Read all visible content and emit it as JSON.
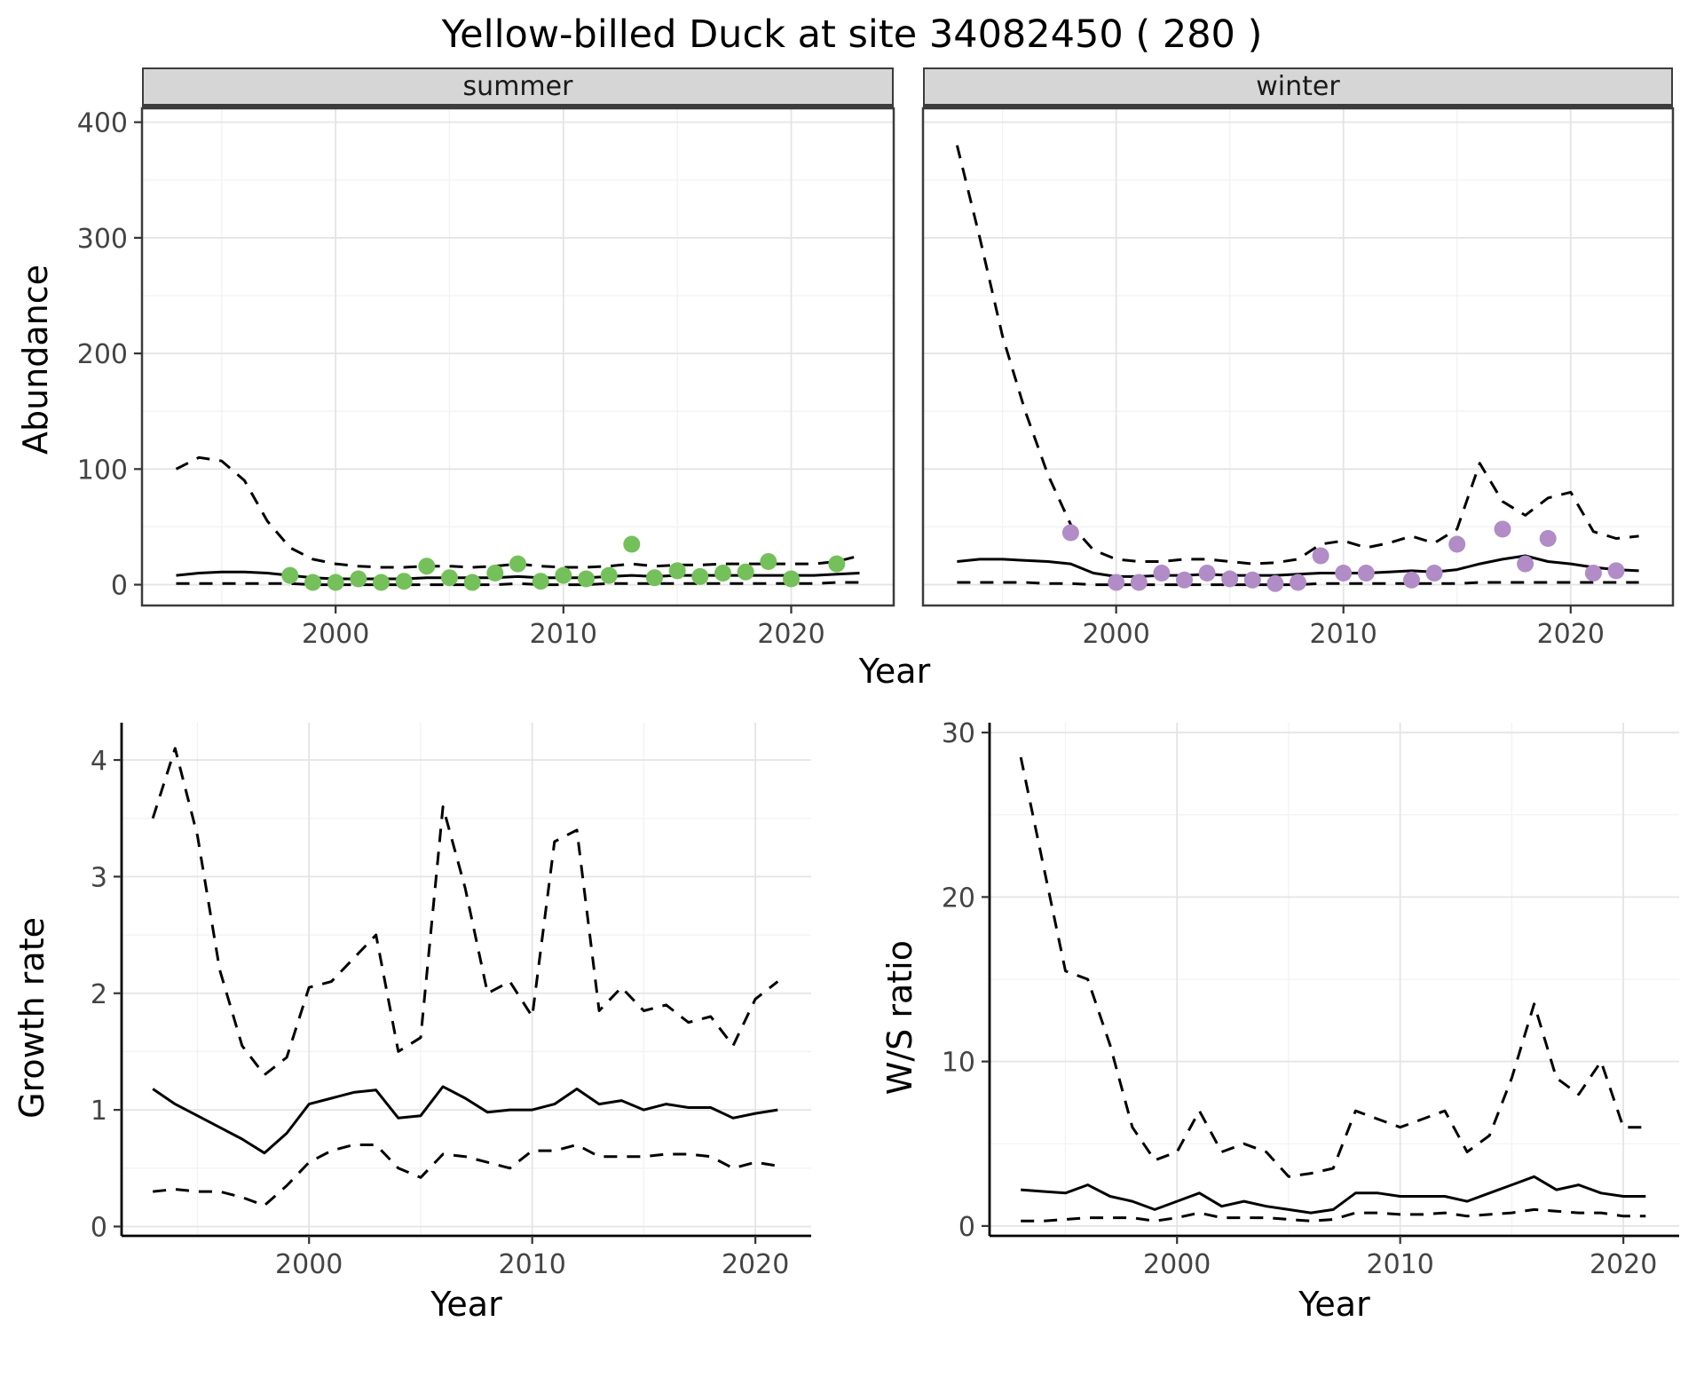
{
  "title": "Yellow-billed Duck at site 34082450 ( 280 )",
  "theme": {
    "summer_point": "#74c05a",
    "winter_point": "#b18cc6",
    "line": "#000000",
    "grid_major": "#e4e4e4",
    "grid_minor": "#f2f2f2",
    "strip_bg": "#d6d6d6",
    "frame": "#3c3c3c",
    "tick_text": "#444444"
  },
  "chart_data": [
    {
      "id": "abundance-summer",
      "type": "line",
      "facet_label": "summer",
      "xlabel": "Year",
      "ylabel": "Abundance",
      "xlim": [
        1991.5,
        2024.5
      ],
      "ylim": [
        -18,
        412
      ],
      "xticks": [
        2000,
        2010,
        2020
      ],
      "yticks": [
        0,
        100,
        200,
        300,
        400
      ],
      "series": [
        {
          "name": "upper-95ci",
          "type": "line",
          "dash": true,
          "x": [
            1993,
            1994,
            1995,
            1996,
            1997,
            1998,
            1999,
            2000,
            2001,
            2002,
            2003,
            2004,
            2005,
            2006,
            2007,
            2008,
            2009,
            2010,
            2011,
            2012,
            2013,
            2014,
            2015,
            2016,
            2017,
            2018,
            2019,
            2020,
            2021,
            2022,
            2023
          ],
          "y": [
            100,
            110,
            107,
            90,
            55,
            32,
            22,
            18,
            16,
            15,
            15,
            16,
            16,
            15,
            16,
            18,
            16,
            15,
            15,
            16,
            18,
            16,
            17,
            17,
            18,
            18,
            18,
            18,
            18,
            20,
            25
          ]
        },
        {
          "name": "modelled-mean",
          "type": "line",
          "dash": false,
          "x": [
            1993,
            1994,
            1995,
            1996,
            1997,
            1998,
            1999,
            2000,
            2001,
            2002,
            2003,
            2004,
            2005,
            2006,
            2007,
            2008,
            2009,
            2010,
            2011,
            2012,
            2013,
            2014,
            2015,
            2016,
            2017,
            2018,
            2019,
            2020,
            2021,
            2022,
            2023
          ],
          "y": [
            8,
            10,
            11,
            11,
            10,
            8,
            6,
            5,
            5,
            5,
            5,
            6,
            6,
            6,
            6,
            7,
            6,
            6,
            6,
            7,
            8,
            7,
            8,
            8,
            8,
            8,
            8,
            8,
            8,
            9,
            10
          ]
        },
        {
          "name": "lower-95ci",
          "type": "line",
          "dash": true,
          "x": [
            1993,
            1994,
            1995,
            1996,
            1997,
            1998,
            1999,
            2000,
            2001,
            2002,
            2003,
            2004,
            2005,
            2006,
            2007,
            2008,
            2009,
            2010,
            2011,
            2012,
            2013,
            2014,
            2015,
            2016,
            2017,
            2018,
            2019,
            2020,
            2021,
            2022,
            2023
          ],
          "y": [
            1,
            1,
            1,
            1,
            1,
            1,
            0,
            0,
            0,
            0,
            0,
            0,
            0,
            0,
            0,
            1,
            0,
            0,
            0,
            1,
            1,
            1,
            1,
            1,
            1,
            1,
            1,
            1,
            1,
            2,
            2
          ]
        },
        {
          "name": "observed-counts",
          "type": "points",
          "color": "#74c05a",
          "x": [
            1998,
            1999,
            2000,
            2001,
            2002,
            2003,
            2004,
            2005,
            2006,
            2007,
            2008,
            2009,
            2010,
            2011,
            2012,
            2013,
            2014,
            2015,
            2016,
            2017,
            2018,
            2019,
            2020,
            2022
          ],
          "y": [
            8,
            2,
            2,
            5,
            2,
            3,
            16,
            6,
            2,
            10,
            18,
            3,
            8,
            5,
            8,
            35,
            6,
            12,
            7,
            10,
            11,
            20,
            5,
            18
          ]
        }
      ]
    },
    {
      "id": "abundance-winter",
      "type": "line",
      "facet_label": "winter",
      "xlabel": "Year",
      "ylabel": "Abundance",
      "xlim": [
        1991.5,
        2024.5
      ],
      "ylim": [
        -18,
        412
      ],
      "xticks": [
        2000,
        2010,
        2020
      ],
      "yticks": [
        0,
        100,
        200,
        300,
        400
      ],
      "series": [
        {
          "name": "upper-95ci",
          "type": "line",
          "dash": true,
          "x": [
            1993,
            1994,
            1995,
            1996,
            1997,
            1998,
            1999,
            2000,
            2001,
            2002,
            2003,
            2004,
            2005,
            2006,
            2007,
            2008,
            2009,
            2010,
            2011,
            2012,
            2013,
            2014,
            2015,
            2016,
            2017,
            2018,
            2019,
            2020,
            2021,
            2022,
            2023
          ],
          "y": [
            380,
            300,
            215,
            150,
            95,
            52,
            30,
            22,
            20,
            20,
            22,
            22,
            20,
            18,
            19,
            22,
            35,
            38,
            32,
            36,
            42,
            36,
            48,
            105,
            72,
            60,
            75,
            80,
            46,
            40,
            42
          ]
        },
        {
          "name": "modelled-mean",
          "type": "line",
          "dash": false,
          "x": [
            1993,
            1994,
            1995,
            1996,
            1997,
            1998,
            1999,
            2000,
            2001,
            2002,
            2003,
            2004,
            2005,
            2006,
            2007,
            2008,
            2009,
            2010,
            2011,
            2012,
            2013,
            2014,
            2015,
            2016,
            2017,
            2018,
            2019,
            2020,
            2021,
            2022,
            2023
          ],
          "y": [
            20,
            22,
            22,
            21,
            20,
            18,
            10,
            7,
            7,
            8,
            8,
            9,
            8,
            8,
            8,
            9,
            10,
            10,
            10,
            11,
            12,
            11,
            13,
            18,
            22,
            25,
            20,
            18,
            15,
            13,
            12
          ]
        },
        {
          "name": "lower-95ci",
          "type": "line",
          "dash": true,
          "x": [
            1993,
            1994,
            1995,
            1996,
            1997,
            1998,
            1999,
            2000,
            2001,
            2002,
            2003,
            2004,
            2005,
            2006,
            2007,
            2008,
            2009,
            2010,
            2011,
            2012,
            2013,
            2014,
            2015,
            2016,
            2017,
            2018,
            2019,
            2020,
            2021,
            2022,
            2023
          ],
          "y": [
            2,
            2,
            2,
            2,
            1,
            1,
            0,
            0,
            0,
            0,
            0,
            0,
            0,
            0,
            0,
            0,
            1,
            1,
            1,
            1,
            1,
            1,
            1,
            2,
            2,
            2,
            2,
            2,
            2,
            2,
            2
          ]
        },
        {
          "name": "observed-counts",
          "type": "points",
          "color": "#b18cc6",
          "x": [
            1998,
            2000,
            2001,
            2002,
            2003,
            2004,
            2005,
            2006,
            2007,
            2008,
            2009,
            2010,
            2011,
            2013,
            2014,
            2015,
            2017,
            2018,
            2019,
            2021,
            2022
          ],
          "y": [
            45,
            2,
            2,
            10,
            4,
            10,
            5,
            4,
            1,
            2,
            25,
            10,
            10,
            4,
            10,
            35,
            48,
            18,
            40,
            10,
            12
          ]
        }
      ]
    },
    {
      "id": "growth-rate",
      "type": "line",
      "facet_label": "",
      "xlabel": "Year",
      "ylabel": "Growth rate",
      "xlim": [
        1991.6,
        2022.5
      ],
      "ylim": [
        -0.08,
        4.32
      ],
      "xticks": [
        2000,
        2010,
        2020
      ],
      "yticks": [
        0,
        1,
        2,
        3,
        4
      ],
      "series": [
        {
          "name": "upper-95ci",
          "type": "line",
          "dash": true,
          "x": [
            1993,
            1994,
            1995,
            1996,
            1997,
            1998,
            1999,
            2000,
            2001,
            2002,
            2003,
            2004,
            2005,
            2006,
            2007,
            2008,
            2009,
            2010,
            2011,
            2012,
            2013,
            2014,
            2015,
            2016,
            2017,
            2018,
            2019,
            2020,
            2021
          ],
          "y": [
            3.5,
            4.1,
            3.35,
            2.2,
            1.55,
            1.3,
            1.45,
            2.05,
            2.1,
            2.3,
            2.5,
            1.5,
            1.62,
            3.6,
            2.9,
            2.0,
            2.1,
            1.8,
            3.3,
            3.4,
            1.85,
            2.05,
            1.85,
            1.9,
            1.75,
            1.8,
            1.55,
            1.95,
            2.1
          ]
        },
        {
          "name": "modelled-mean",
          "type": "line",
          "dash": false,
          "x": [
            1993,
            1994,
            1995,
            1996,
            1997,
            1998,
            1999,
            2000,
            2001,
            2002,
            2003,
            2004,
            2005,
            2006,
            2007,
            2008,
            2009,
            2010,
            2011,
            2012,
            2013,
            2014,
            2015,
            2016,
            2017,
            2018,
            2019,
            2020,
            2021
          ],
          "y": [
            1.18,
            1.05,
            0.95,
            0.85,
            0.75,
            0.63,
            0.8,
            1.05,
            1.1,
            1.15,
            1.17,
            0.93,
            0.95,
            1.2,
            1.1,
            0.98,
            1.0,
            1.0,
            1.05,
            1.18,
            1.05,
            1.08,
            1.0,
            1.05,
            1.02,
            1.02,
            0.93,
            0.97,
            1.0
          ]
        },
        {
          "name": "lower-95ci",
          "type": "line",
          "dash": true,
          "x": [
            1993,
            1994,
            1995,
            1996,
            1997,
            1998,
            1999,
            2000,
            2001,
            2002,
            2003,
            2004,
            2005,
            2006,
            2007,
            2008,
            2009,
            2010,
            2011,
            2012,
            2013,
            2014,
            2015,
            2016,
            2017,
            2018,
            2019,
            2020,
            2021
          ],
          "y": [
            0.3,
            0.32,
            0.3,
            0.3,
            0.25,
            0.18,
            0.35,
            0.55,
            0.65,
            0.7,
            0.7,
            0.5,
            0.42,
            0.62,
            0.6,
            0.55,
            0.5,
            0.65,
            0.65,
            0.7,
            0.6,
            0.6,
            0.6,
            0.62,
            0.62,
            0.6,
            0.5,
            0.55,
            0.52
          ]
        }
      ]
    },
    {
      "id": "ws-ratio",
      "type": "line",
      "facet_label": "",
      "xlabel": "Year",
      "ylabel": "W/S ratio",
      "xlim": [
        1991.6,
        2022.5
      ],
      "ylim": [
        -0.6,
        30.6
      ],
      "xticks": [
        2000,
        2010,
        2020
      ],
      "yticks": [
        0,
        10,
        20,
        30
      ],
      "series": [
        {
          "name": "upper-95ci",
          "type": "line",
          "dash": true,
          "x": [
            1993,
            1994,
            1995,
            1996,
            1997,
            1998,
            1999,
            2000,
            2001,
            2002,
            2003,
            2004,
            2005,
            2006,
            2007,
            2008,
            2009,
            2010,
            2011,
            2012,
            2013,
            2014,
            2015,
            2016,
            2017,
            2018,
            2019,
            2020,
            2021
          ],
          "y": [
            28.5,
            22,
            15.5,
            15,
            11,
            6,
            4,
            4.5,
            7,
            4.5,
            5,
            4.5,
            3,
            3.2,
            3.5,
            7,
            6.5,
            6,
            6.5,
            7,
            4.5,
            5.5,
            9,
            13.5,
            9,
            8,
            10,
            6,
            6
          ]
        },
        {
          "name": "modelled-mean",
          "type": "line",
          "dash": false,
          "x": [
            1993,
            1994,
            1995,
            1996,
            1997,
            1998,
            1999,
            2000,
            2001,
            2002,
            2003,
            2004,
            2005,
            2006,
            2007,
            2008,
            2009,
            2010,
            2011,
            2012,
            2013,
            2014,
            2015,
            2016,
            2017,
            2018,
            2019,
            2020,
            2021
          ],
          "y": [
            2.2,
            2.1,
            2.0,
            2.5,
            1.8,
            1.5,
            1.0,
            1.5,
            2.0,
            1.2,
            1.5,
            1.2,
            1.0,
            0.8,
            1.0,
            2.0,
            2.0,
            1.8,
            1.8,
            1.8,
            1.5,
            2.0,
            2.5,
            3.0,
            2.2,
            2.5,
            2.0,
            1.8,
            1.8
          ]
        },
        {
          "name": "lower-95ci",
          "type": "line",
          "dash": true,
          "x": [
            1993,
            1994,
            1995,
            1996,
            1997,
            1998,
            1999,
            2000,
            2001,
            2002,
            2003,
            2004,
            2005,
            2006,
            2007,
            2008,
            2009,
            2010,
            2011,
            2012,
            2013,
            2014,
            2015,
            2016,
            2017,
            2018,
            2019,
            2020,
            2021
          ],
          "y": [
            0.3,
            0.3,
            0.4,
            0.5,
            0.5,
            0.5,
            0.3,
            0.5,
            0.8,
            0.5,
            0.5,
            0.5,
            0.4,
            0.3,
            0.4,
            0.8,
            0.8,
            0.7,
            0.7,
            0.8,
            0.6,
            0.7,
            0.8,
            1.0,
            0.9,
            0.8,
            0.8,
            0.6,
            0.6
          ]
        }
      ]
    }
  ]
}
